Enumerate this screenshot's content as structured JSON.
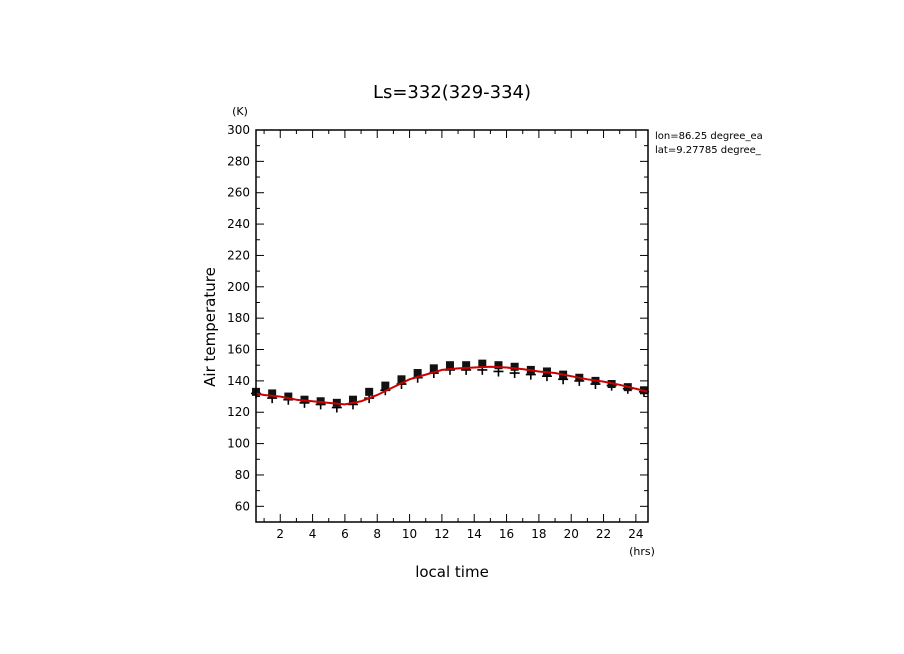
{
  "chart_data": {
    "type": "line",
    "title": "Ls=332(329-334)",
    "xlabel": "local time",
    "ylabel": "Air temperature",
    "xunit": "(hrs)",
    "yunit": "(K)",
    "xlim": [
      0.5,
      24.75
    ],
    "ylim": [
      50,
      300
    ],
    "xticks": [
      2,
      4,
      6,
      8,
      10,
      12,
      14,
      16,
      18,
      20,
      22,
      24
    ],
    "yticks": [
      60,
      80,
      100,
      120,
      140,
      160,
      180,
      200,
      220,
      240,
      260,
      280,
      300
    ],
    "annotations": [
      "lon=86.25 degree_ea",
      "lat=9.27785 degree_"
    ],
    "line_color": "#cc0000",
    "series": [
      {
        "style": "line",
        "x": [
          0.5,
          1,
          2,
          3,
          4,
          5,
          6,
          7,
          8,
          9,
          10,
          11,
          12,
          13,
          14,
          15,
          16,
          17,
          18,
          19,
          20,
          21,
          22,
          23,
          24,
          24.75
        ],
        "y": [
          132,
          131,
          130,
          128,
          127,
          126,
          125,
          127,
          131,
          136,
          141,
          144,
          147,
          148,
          148.5,
          149,
          148.5,
          147.5,
          146,
          145,
          143,
          141,
          139.5,
          137.5,
          135,
          133
        ]
      },
      {
        "style": "square-marker",
        "x": [
          0.5,
          1.5,
          2.5,
          3.5,
          4.5,
          5.5,
          6.5,
          7.5,
          8.5,
          9.5,
          10.5,
          11.5,
          12.5,
          13.5,
          14.5,
          15.5,
          16.5,
          17.5,
          18.5,
          19.5,
          20.5,
          21.5,
          22.5,
          23.5,
          24.5
        ],
        "y": [
          133,
          132,
          130,
          128,
          127,
          126,
          128,
          133,
          137,
          141,
          145,
          148,
          150,
          150,
          151,
          150,
          149,
          147,
          146,
          144,
          142,
          140,
          138,
          136,
          134
        ]
      },
      {
        "style": "plus-marker",
        "x": [
          0.5,
          1.5,
          2.5,
          3.5,
          4.5,
          5.5,
          6.5,
          7.5,
          8.5,
          9.5,
          10.5,
          11.5,
          12.5,
          13.5,
          14.5,
          15.5,
          16.5,
          17.5,
          18.5,
          19.5,
          20.5,
          21.5,
          22.5,
          23.5,
          24.5
        ],
        "y": [
          132,
          129,
          128,
          126,
          125,
          123,
          125,
          129,
          134,
          138,
          142,
          145,
          147,
          147,
          147,
          146,
          145,
          144,
          143,
          141,
          140,
          138,
          137,
          135,
          133
        ]
      }
    ]
  }
}
